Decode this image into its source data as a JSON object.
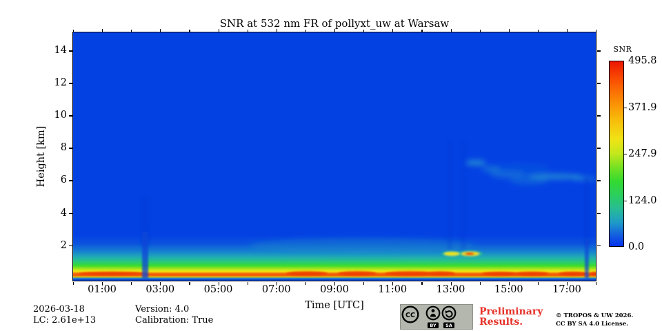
{
  "chart_data": {
    "type": "heatmap",
    "title": "SNR at 532 nm FR of pollyxt_uw at Warsaw",
    "xlabel": "Time [UTC]",
    "ylabel": "Height [km]",
    "x_range_utc": [
      "00:00",
      "18:02"
    ],
    "y_range_km": [
      0,
      15.2
    ],
    "x_ticks": [
      {
        "label": "01:00",
        "hour": 1
      },
      {
        "label": "03:00",
        "hour": 3
      },
      {
        "label": "05:00",
        "hour": 5
      },
      {
        "label": "07:00",
        "hour": 7
      },
      {
        "label": "09:00",
        "hour": 9
      },
      {
        "label": "11:00",
        "hour": 11
      },
      {
        "label": "13:00",
        "hour": 13
      },
      {
        "label": "15:00",
        "hour": 15
      },
      {
        "label": "17:00",
        "hour": 17
      }
    ],
    "x_minor_tick_every_hours": 1,
    "y_ticks": [
      {
        "label": "2",
        "km": 2
      },
      {
        "label": "4",
        "km": 4
      },
      {
        "label": "6",
        "km": 6
      },
      {
        "label": "8",
        "km": 8
      },
      {
        "label": "10",
        "km": 10
      },
      {
        "label": "12",
        "km": 12
      },
      {
        "label": "14",
        "km": 14
      }
    ],
    "colorbar": {
      "title": "SNR",
      "tick_labels": [
        "495.8",
        "371.9",
        "247.9",
        "124.0",
        "0.0"
      ],
      "vmin": 0.0,
      "vmax": 495.8,
      "colormap": "jet",
      "zero_value_color": "#0441e3",
      "max_value_color": "#ec1602"
    },
    "features": [
      {
        "name": "boundary-layer-band",
        "time_utc": "00:00-18:02",
        "height_km": [
          0.1,
          2.0
        ],
        "description": "Continuous high-SNR near-surface aerosol band peaking red-orange (~400-495) near 0.4 km, grading yellow-green-teal to blue by ~2 km; strongest red segments ~00:10-02:25, 07:30-13:00, 15:00-15:40, 17:10-17:45"
      },
      {
        "name": "low-snr-streak",
        "time_utc": "02:30",
        "height_km": [
          0,
          3
        ],
        "description": "Dark vertical attenuation/gap streak through the surface band"
      },
      {
        "name": "low-snr-streak",
        "time_utc": "17:45",
        "height_km": [
          0,
          4
        ],
        "description": "Narrow dark vertical streak near end of record"
      },
      {
        "name": "low-cloud-echoes",
        "time_utc": "13:05-13:45",
        "height_km": [
          1.5,
          1.8
        ],
        "description": "Two small bright cloud returns (yellow, second with red core) with faint darker streaks above them"
      },
      {
        "name": "elevated-cloud-layer",
        "time_utc": "13:50-18:00",
        "height_km": [
          5.5,
          7.2
        ],
        "description": "Faint teal cirrus/aerosol traces descending from ~7 km to ~6 km toward the right edge"
      }
    ]
  },
  "footer": {
    "date": "2026-03-18",
    "lc": "LC: 2.61e+13",
    "version": "Version: 4.0",
    "calibration": "Calibration: True"
  },
  "badge": {
    "cc_label": "CC",
    "by_label": "BY",
    "sa_label": "SA"
  },
  "preliminary": {
    "line1": "Preliminary",
    "line2": "Results.",
    "color": "#e53228"
  },
  "copyright": {
    "line1": "© TROPOS & UW 2026.",
    "line2": "CC BY SA 4.0 License."
  }
}
